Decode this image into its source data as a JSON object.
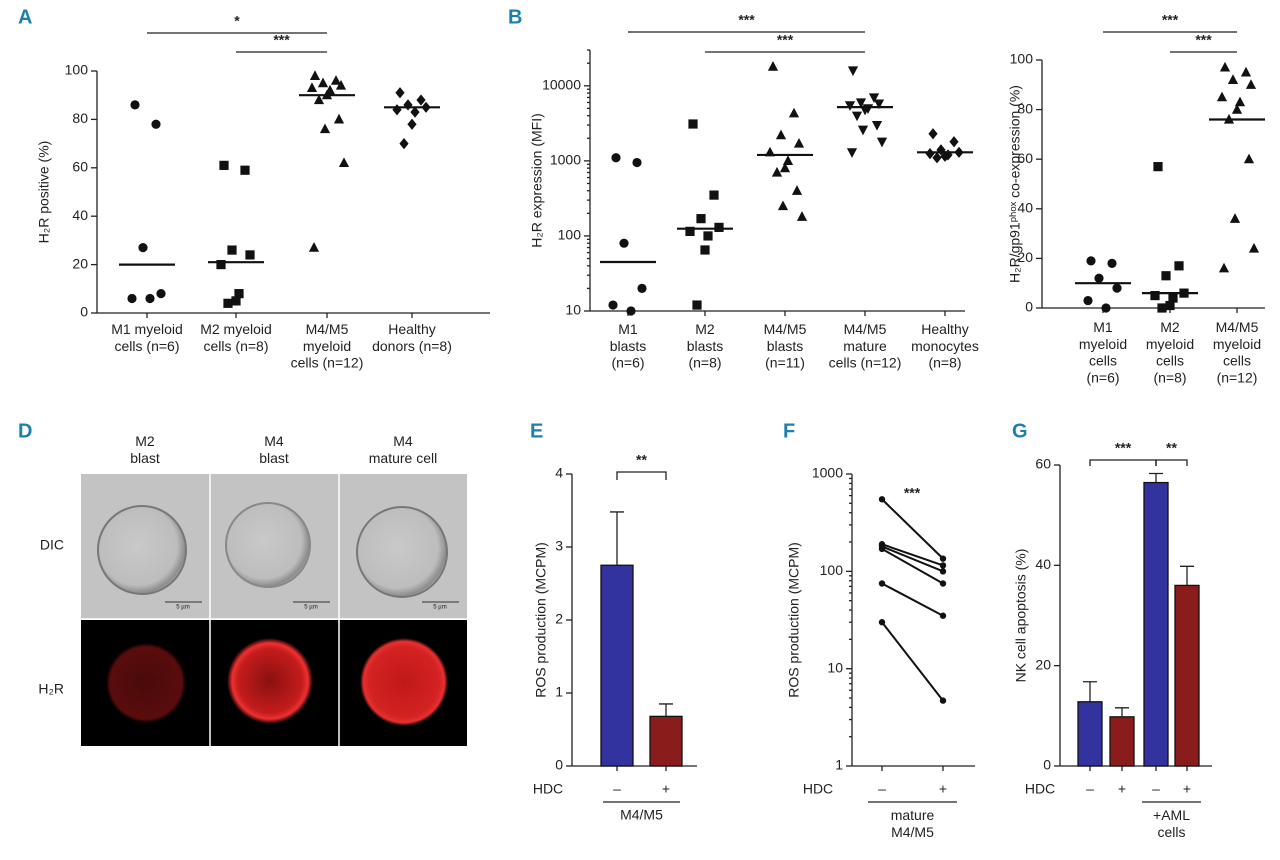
{
  "chart_data": [
    {
      "type": "strip",
      "label": "A",
      "ylabel": "H₂R positive (%)",
      "categories": [
        "M1 myeloid\ncells (n=6)",
        "M2 myeloid\ncells (n=8)",
        "M4/M5\nmyeloid\ncells (n=12)",
        "Healthy\ndonors (n=8)"
      ],
      "values": [
        [
          86,
          78,
          27,
          8,
          6,
          6
        ],
        [
          61,
          59,
          26,
          24,
          20,
          8,
          5,
          4
        ],
        [
          98,
          96,
          95,
          94,
          93,
          92,
          90,
          88,
          80,
          76,
          62,
          27
        ],
        [
          91,
          88,
          86,
          85,
          84,
          83,
          78,
          70
        ]
      ],
      "medians": [
        20,
        21,
        90,
        85
      ],
      "markers": [
        "circle",
        "square",
        "triangle",
        "diamond"
      ],
      "color": "#111111",
      "ylim": [
        0,
        100
      ],
      "yticks": [
        0,
        20,
        40,
        60,
        80,
        100
      ],
      "annotations": [
        "*",
        "***"
      ]
    },
    {
      "type": "strip",
      "label": "B",
      "ylabel": "H₂R expression (MFI)",
      "log_scale": true,
      "categories": [
        "M1\nblasts\n(n=6)",
        "M2\nblasts\n(n=8)",
        "M4/M5\nblasts\n(n=11)",
        "M4/M5\nmature\ncells (n=12)",
        "Healthy\nmonocytes\n(n=8)"
      ],
      "values": [
        [
          1100,
          950,
          80,
          20,
          12,
          10
        ],
        [
          3100,
          350,
          170,
          130,
          115,
          100,
          65,
          12
        ],
        [
          18000,
          4300,
          2200,
          1700,
          1300,
          1000,
          800,
          700,
          400,
          250,
          180
        ],
        [
          16000,
          7000,
          6000,
          5800,
          5500,
          5000,
          4800,
          4000,
          3000,
          2600,
          1800,
          1300
        ],
        [
          2300,
          1800,
          1400,
          1300,
          1250,
          1200,
          1150,
          1100
        ]
      ],
      "medians": [
        45,
        125,
        1200,
        5200,
        1300
      ],
      "markers": [
        "circle",
        "square",
        "triangle",
        "triangle-down",
        "diamond"
      ],
      "color": "#111111",
      "ylim": [
        10,
        30000
      ],
      "yticks": [
        10,
        100,
        1000,
        10000
      ],
      "annotations": [
        "***",
        "***"
      ]
    },
    {
      "type": "strip",
      "ylabel": "H₂R/gp91ᵖʰᵒˣ co-expression (%)",
      "categories": [
        "M1\nmyeloid\ncells\n(n=6)",
        "M2\nmyeloid\ncells\n(n=8)",
        "M4/M5\nmyeloid\ncells\n(n=12)"
      ],
      "values": [
        [
          19,
          18,
          12,
          8,
          3,
          0
        ],
        [
          57,
          17,
          13,
          6,
          5,
          4,
          1,
          0
        ],
        [
          97,
          95,
          92,
          90,
          85,
          83,
          80,
          76,
          60,
          36,
          24,
          16
        ]
      ],
      "medians": [
        10,
        6,
        76
      ],
      "markers": [
        "circle",
        "square",
        "triangle"
      ],
      "color": "#111111",
      "ylim": [
        0,
        100
      ],
      "yticks": [
        0,
        20,
        40,
        60,
        80,
        100
      ],
      "annotations": [
        "***",
        "***"
      ]
    },
    {
      "type": "bar",
      "label": "E",
      "ylabel": "ROS production (MCPM)",
      "xlabel": "HDC",
      "group_label": "M4/M5",
      "categories": [
        "–",
        "+"
      ],
      "values": [
        2.75,
        0.68
      ],
      "errors": [
        0.73,
        0.17
      ],
      "colors": [
        "#3333a0",
        "#8a1c1c"
      ],
      "ylim": [
        0,
        4
      ],
      "yticks": [
        0,
        1,
        2,
        3,
        4
      ],
      "annotations": [
        "**"
      ]
    },
    {
      "type": "line",
      "label": "F",
      "ylabel": "ROS production (MCPM)",
      "xlabel": "HDC",
      "group_label": "mature\nM4/M5",
      "log_scale": true,
      "categories": [
        "–",
        "+"
      ],
      "color": "#111111",
      "series": [
        {
          "values": [
            550,
            135
          ]
        },
        {
          "values": [
            190,
            115
          ]
        },
        {
          "values": [
            180,
            100
          ]
        },
        {
          "values": [
            170,
            75
          ]
        },
        {
          "values": [
            75,
            35
          ]
        },
        {
          "values": [
            30,
            4.7
          ]
        }
      ],
      "ylim": [
        1,
        1000
      ],
      "yticks": [
        1,
        10,
        100,
        1000
      ],
      "annotations": [
        "***"
      ]
    },
    {
      "type": "bar",
      "label": "G",
      "ylabel": "NK cell apoptosis (%)",
      "xlabel": "HDC",
      "group_label": "+AML\ncells",
      "categories": [
        "–",
        "+",
        "–",
        "+"
      ],
      "values": [
        12.8,
        9.8,
        56.5,
        36
      ],
      "errors": [
        4,
        1.8,
        1.8,
        3.8
      ],
      "colors": [
        "#3333a0",
        "#8a1c1c",
        "#3333a0",
        "#8a1c1c"
      ],
      "ylim": [
        0,
        60
      ],
      "yticks": [
        0,
        20,
        40,
        60
      ],
      "annotations": [
        "***",
        "**"
      ]
    }
  ],
  "figure_d": {
    "label": "D",
    "columns": [
      "M2\nblast",
      "M4\nblast",
      "M4\nmature cell"
    ],
    "rows": [
      "DIC",
      "H₂R"
    ],
    "scale_bar": "5 µm"
  }
}
